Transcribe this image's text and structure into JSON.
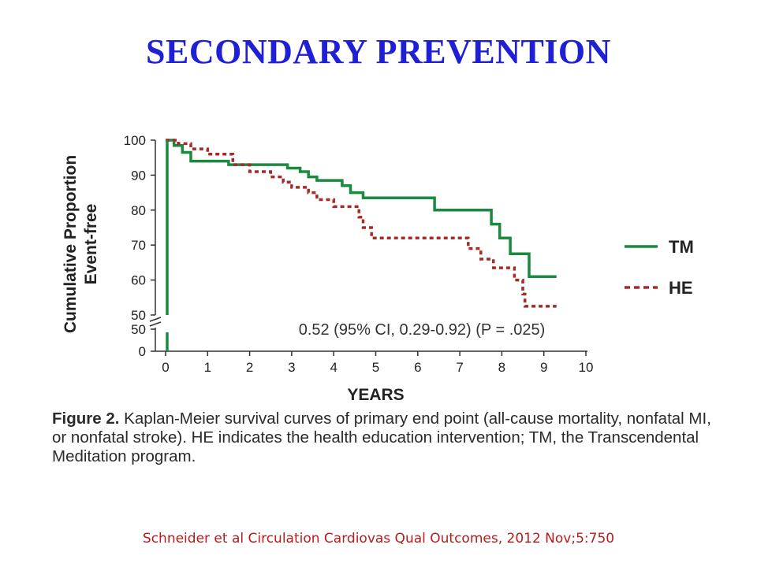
{
  "slide": {
    "title": "SECONDARY PREVENTION",
    "citation": "Schneider et al Circulation Cardiovas Qual Outcomes, 2012 Nov;5:750"
  },
  "caption": {
    "label": "Figure 2.",
    "text": "Kaplan-Meier survival curves of primary end point (all-cause mortality, nonfatal MI, or nonfatal stroke). HE indicates the health education intervention; TM, the Transcendental Meditation program."
  },
  "chart_data": {
    "type": "line",
    "subtype": "step",
    "title": "",
    "xlabel": "YEARS",
    "ylabel": [
      "Cumulative Proportion",
      "Event-free"
    ],
    "xlim": [
      0,
      10
    ],
    "ylim": [
      50,
      100
    ],
    "x_ticks": [
      0,
      1,
      2,
      3,
      4,
      5,
      6,
      7,
      8,
      9,
      10
    ],
    "y_ticks": [
      100,
      90,
      80,
      70,
      60,
      50
    ],
    "y_break_ticks": [
      50,
      0
    ],
    "broken_axis": true,
    "grid": false,
    "legend_position": "right",
    "annotation": "0.52 (95% CI, 0.29-0.92) (P = .025)",
    "series": [
      {
        "name": "TM",
        "color": "#1a8a3e",
        "style": "solid",
        "points": [
          [
            0,
            100
          ],
          [
            0.2,
            100
          ],
          [
            0.2,
            98.5
          ],
          [
            0.4,
            98.5
          ],
          [
            0.4,
            96.5
          ],
          [
            0.6,
            96.5
          ],
          [
            0.6,
            94
          ],
          [
            1.5,
            94
          ],
          [
            1.5,
            93
          ],
          [
            2.9,
            93
          ],
          [
            2.9,
            92
          ],
          [
            3.2,
            92
          ],
          [
            3.2,
            91
          ],
          [
            3.4,
            91
          ],
          [
            3.4,
            89.5
          ],
          [
            3.6,
            89.5
          ],
          [
            3.6,
            88.5
          ],
          [
            4.2,
            88.5
          ],
          [
            4.2,
            87
          ],
          [
            4.4,
            87
          ],
          [
            4.4,
            85
          ],
          [
            4.7,
            85
          ],
          [
            4.7,
            83.5
          ],
          [
            6.4,
            83.5
          ],
          [
            6.4,
            80
          ],
          [
            7.75,
            80
          ],
          [
            7.75,
            76
          ],
          [
            7.95,
            76
          ],
          [
            7.95,
            72
          ],
          [
            8.2,
            72
          ],
          [
            8.2,
            67.5
          ],
          [
            8.65,
            67.5
          ],
          [
            8.65,
            61
          ],
          [
            9.3,
            61
          ]
        ]
      },
      {
        "name": "HE",
        "color": "#a52a2a",
        "style": "dashed",
        "points": [
          [
            0,
            100
          ],
          [
            0.3,
            100
          ],
          [
            0.3,
            99
          ],
          [
            0.6,
            99
          ],
          [
            0.6,
            97.5
          ],
          [
            1.0,
            97.5
          ],
          [
            1.0,
            96
          ],
          [
            1.6,
            96
          ],
          [
            1.6,
            93
          ],
          [
            2.0,
            93
          ],
          [
            2.0,
            91
          ],
          [
            2.5,
            91
          ],
          [
            2.5,
            89.5
          ],
          [
            2.8,
            89.5
          ],
          [
            2.8,
            88
          ],
          [
            3.0,
            88
          ],
          [
            3.0,
            86.5
          ],
          [
            3.4,
            86.5
          ],
          [
            3.4,
            85
          ],
          [
            3.6,
            85
          ],
          [
            3.6,
            83
          ],
          [
            4.0,
            83
          ],
          [
            4.0,
            81
          ],
          [
            4.6,
            81
          ],
          [
            4.6,
            78
          ],
          [
            4.7,
            78
          ],
          [
            4.7,
            75
          ],
          [
            4.9,
            75
          ],
          [
            4.9,
            72
          ],
          [
            7.2,
            72
          ],
          [
            7.2,
            69
          ],
          [
            7.5,
            69
          ],
          [
            7.5,
            66
          ],
          [
            7.8,
            66
          ],
          [
            7.8,
            63.5
          ],
          [
            8.3,
            63.5
          ],
          [
            8.3,
            60
          ],
          [
            8.5,
            60
          ],
          [
            8.5,
            56
          ],
          [
            8.55,
            56
          ],
          [
            8.55,
            52.5
          ],
          [
            9.3,
            52.5
          ]
        ]
      }
    ]
  }
}
